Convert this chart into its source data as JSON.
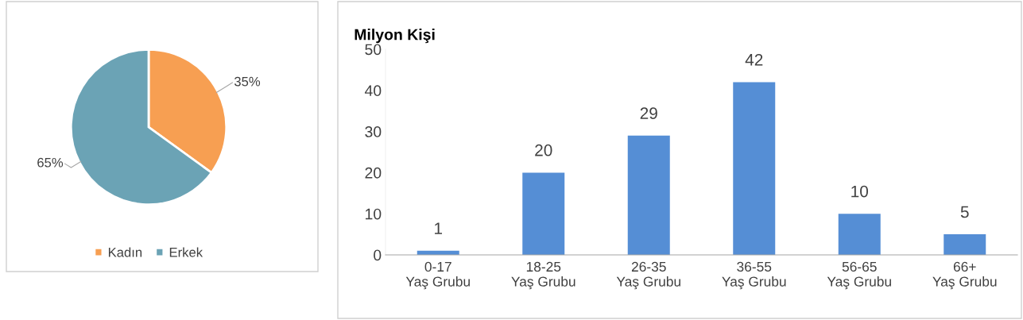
{
  "chart_data": [
    {
      "type": "pie",
      "categories": [
        "Kadın",
        "Erkek"
      ],
      "values": [
        35,
        65
      ],
      "colors": [
        "#f79f52",
        "#6ba3b5"
      ],
      "value_labels": [
        "35%",
        "65%"
      ],
      "legend": "bottom"
    },
    {
      "type": "bar",
      "ylabel": "Milyon Kişi",
      "categories": [
        "0-17\nYaş Grubu",
        "18-25\nYaş Grubu",
        "26-35\nYaş Grubu",
        "36-55\nYaş Grubu",
        "56-65\nYaş Grubu",
        "66+\nYaş Grubu"
      ],
      "values": [
        1,
        20,
        29,
        42,
        10,
        5
      ],
      "color": "#558ed5",
      "ylim": [
        0,
        50
      ],
      "yticks": [
        0,
        10,
        20,
        30,
        40,
        50
      ],
      "data_labels": true
    }
  ]
}
